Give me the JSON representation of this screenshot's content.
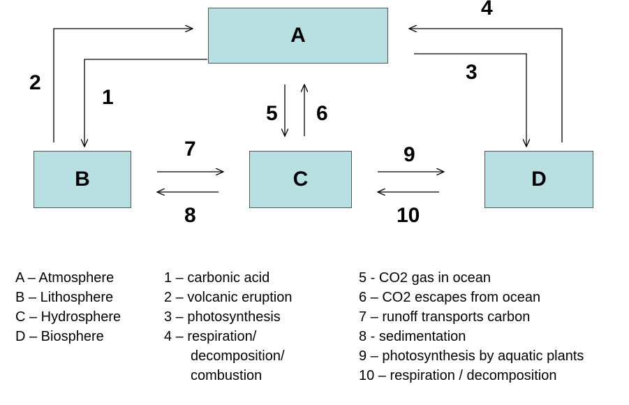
{
  "nodes": {
    "A": "A",
    "B": "B",
    "C": "C",
    "D": "D"
  },
  "arrow_labels": [
    "1",
    "2",
    "3",
    "4",
    "5",
    "6",
    "7",
    "8",
    "9",
    "10"
  ],
  "legend": {
    "spheres": [
      "A – Atmosphere",
      "B – Lithosphere",
      "C – Hydrosphere",
      "D – Biosphere"
    ],
    "processes_1_4": [
      "1 – carbonic acid",
      "2 – volcanic eruption",
      "3 – photosynthesis",
      "4 – respiration/",
      "decomposition/",
      "combustion"
    ],
    "processes_5_10": [
      "5 - CO2 gas in ocean",
      "6 – CO2 escapes from ocean",
      "7 – runoff transports carbon",
      "8 - sedimentation",
      "9 – photosynthesis by aquatic plants",
      "10 – respiration / decomposition"
    ]
  }
}
